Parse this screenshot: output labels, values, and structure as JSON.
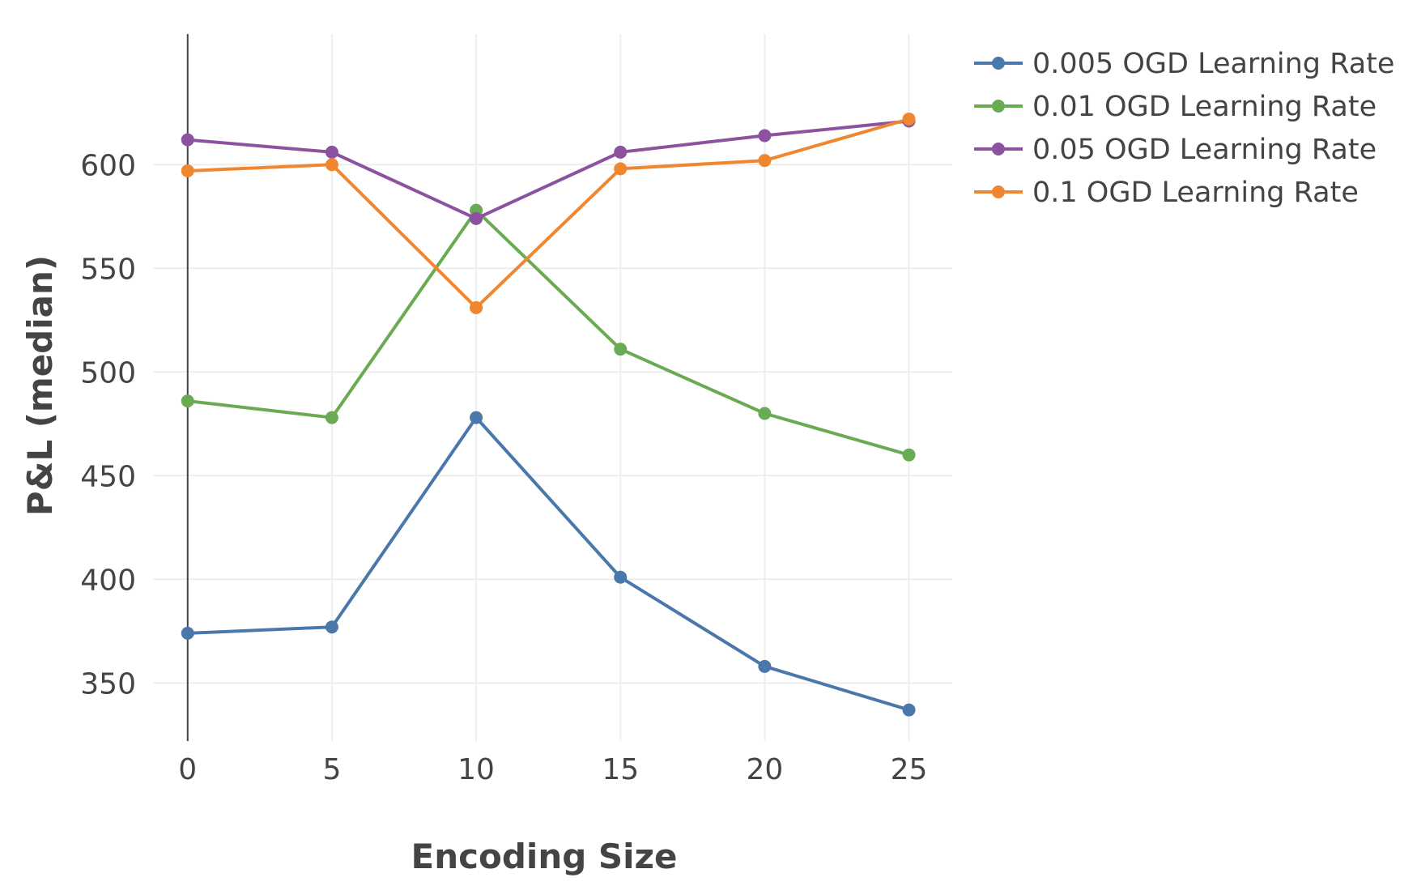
{
  "chart_data": {
    "type": "line",
    "title": "",
    "xlabel": "Encoding Size",
    "ylabel": "P&L (median)",
    "x": [
      0,
      5,
      10,
      15,
      20,
      25
    ],
    "xlim": [
      -1.2,
      26.5
    ],
    "ylim": [
      322,
      663
    ],
    "xticks": [
      0,
      5,
      10,
      15,
      20,
      25
    ],
    "yticks": [
      350,
      400,
      450,
      500,
      550,
      600
    ],
    "grid": true,
    "legend_position": "top-right",
    "series": [
      {
        "name": "0.005 OGD Learning Rate",
        "color": "#4a78aa",
        "values": [
          374,
          377,
          478,
          401,
          358,
          337
        ]
      },
      {
        "name": "0.01 OGD Learning Rate",
        "color": "#6aaa53",
        "values": [
          486,
          478,
          578,
          511,
          480,
          460
        ]
      },
      {
        "name": "0.05 OGD Learning Rate",
        "color": "#8c52a0",
        "values": [
          612,
          606,
          574,
          606,
          614,
          621
        ]
      },
      {
        "name": "0.1 OGD Learning Rate",
        "color": "#f08730",
        "values": [
          597,
          600,
          531,
          598,
          602,
          622
        ]
      }
    ]
  }
}
